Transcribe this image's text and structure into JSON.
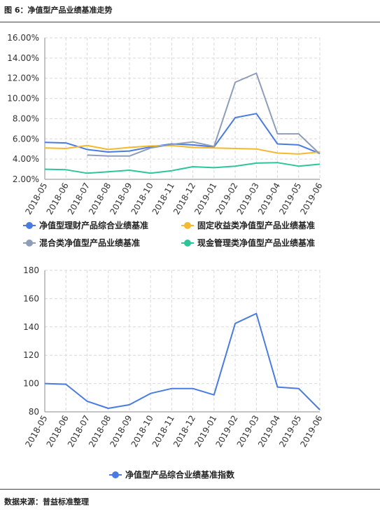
{
  "header": {
    "title": "图 6：净值型产品业绩基准走势"
  },
  "footer": {
    "source": "数据来源：普益标准整理"
  },
  "chart_data": [
    {
      "type": "line",
      "title": "",
      "xlabel": "",
      "ylabel": "",
      "x": [
        "2018-05",
        "2018-06",
        "2018-07",
        "2018-08",
        "2018-09",
        "2018-10",
        "2018-11",
        "2018-12",
        "2019-01",
        "2019-02",
        "2019-03",
        "2019-04",
        "2019-05",
        "2019-06"
      ],
      "yticks": [
        "2.00%",
        "4.00%",
        "6.00%",
        "8.00%",
        "10.00%",
        "12.00%",
        "14.00%",
        "16.00%"
      ],
      "ylim": [
        2,
        16
      ],
      "grid": true,
      "legend_position": "bottom",
      "series": [
        {
          "name": "净值型理财产品综合业绩基准",
          "color": "#4A7BE0",
          "values": [
            5.65,
            5.6,
            4.95,
            4.7,
            4.8,
            5.2,
            5.5,
            5.4,
            5.2,
            8.1,
            8.5,
            5.5,
            5.4,
            4.55
          ]
        },
        {
          "name": "固定收益类净值型产品业绩基准",
          "color": "#F5B82E",
          "values": [
            5.1,
            5.05,
            5.35,
            4.95,
            5.15,
            5.3,
            5.35,
            5.15,
            5.1,
            5.05,
            5.0,
            4.6,
            4.5,
            4.7
          ]
        },
        {
          "name": "混合类净值型产品业绩基准",
          "color": "#8E9DB8",
          "values": [
            null,
            null,
            4.4,
            4.3,
            4.3,
            5.1,
            5.45,
            5.7,
            5.25,
            11.6,
            12.5,
            6.5,
            6.5,
            4.5
          ]
        },
        {
          "name": "现金管理类净值型产品业绩基准",
          "color": "#2DC59A",
          "values": [
            3.0,
            2.95,
            2.6,
            2.75,
            2.9,
            2.6,
            2.85,
            3.25,
            3.15,
            3.3,
            3.6,
            3.65,
            3.3,
            3.5
          ]
        }
      ]
    },
    {
      "type": "line",
      "title": "",
      "xlabel": "",
      "ylabel": "",
      "x": [
        "2018-05",
        "2018-06",
        "2018-07",
        "2018-08",
        "2018-09",
        "2018-10",
        "2018-11",
        "2018-12",
        "2019-01",
        "2019-02",
        "2019-03",
        "2019-04",
        "2019-05",
        "2019-06"
      ],
      "yticks": [
        "80",
        "100",
        "120",
        "140",
        "160",
        "180"
      ],
      "ylim": [
        80,
        180
      ],
      "grid": true,
      "legend_position": "bottom",
      "series": [
        {
          "name": "净值型产品综合业绩基准指数",
          "color": "#4A7BE0",
          "values": [
            100,
            99.5,
            87.5,
            82.5,
            85,
            93,
            96.5,
            96.5,
            92,
            142.5,
            149.5,
            97.5,
            96.5,
            81.5
          ]
        }
      ]
    }
  ]
}
